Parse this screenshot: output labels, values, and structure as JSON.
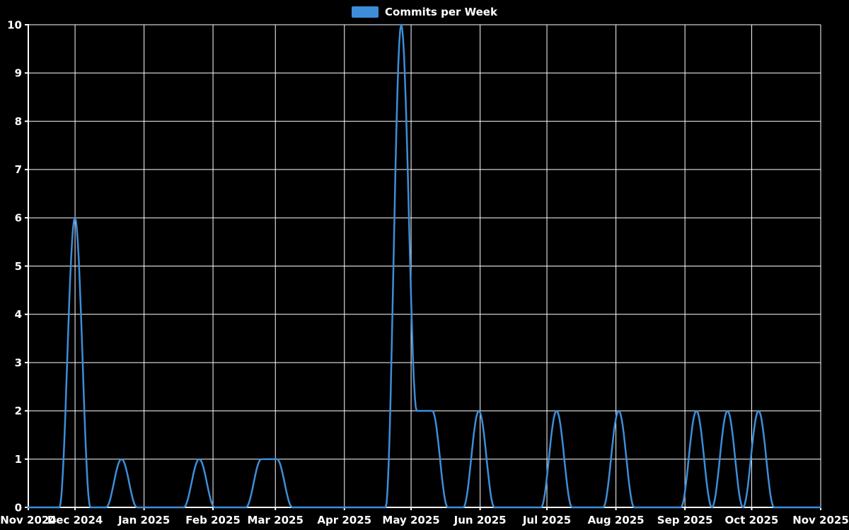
{
  "chart_data": {
    "type": "line",
    "title": "Commits per Week",
    "legend": {
      "label": "Commits per Week",
      "position": "top-center"
    },
    "line_color": "#3d8ed8",
    "background_color": "#000000",
    "grid_color": "#ffffff",
    "text_color": "#ffffff",
    "xlabel": "",
    "ylabel": "",
    "ylim": [
      0,
      10
    ],
    "yticks": [
      0,
      1,
      2,
      3,
      4,
      5,
      6,
      7,
      8,
      9,
      10
    ],
    "x_axis": {
      "start": "Nov 2024",
      "end": "Nov 2025",
      "ticks": [
        {
          "label": "Nov 2024",
          "t": 0
        },
        {
          "label": "Dec 2024",
          "t": 0.059
        },
        {
          "label": "Jan 2025",
          "t": 0.1461
        },
        {
          "label": "Feb 2025",
          "t": 0.2331
        },
        {
          "label": "Mar 2025",
          "t": 0.3118
        },
        {
          "label": "Apr 2025",
          "t": 0.3989
        },
        {
          "label": "May 2025",
          "t": 0.4831
        },
        {
          "label": "Jun 2025",
          "t": 0.5702
        },
        {
          "label": "Jul 2025",
          "t": 0.6545
        },
        {
          "label": "Aug 2025",
          "t": 0.7416
        },
        {
          "label": "Sep 2025",
          "t": 0.8287
        },
        {
          "label": "Oct 2025",
          "t": 0.9129
        },
        {
          "label": "Nov 2025",
          "t": 1
        }
      ]
    },
    "series": [
      {
        "name": "Commits per Week",
        "interval": "weekly",
        "values": [
          0,
          0,
          0,
          6,
          0,
          0,
          1,
          0,
          0,
          0,
          0,
          1,
          0,
          0,
          0,
          1,
          1,
          0,
          0,
          0,
          0,
          0,
          0,
          0,
          10,
          2,
          2,
          0,
          0,
          2,
          0,
          0,
          0,
          0,
          2,
          0,
          0,
          0,
          2,
          0,
          0,
          0,
          0,
          2,
          0,
          2,
          0,
          2,
          0,
          0,
          0,
          0
        ]
      }
    ],
    "grid": "on"
  }
}
